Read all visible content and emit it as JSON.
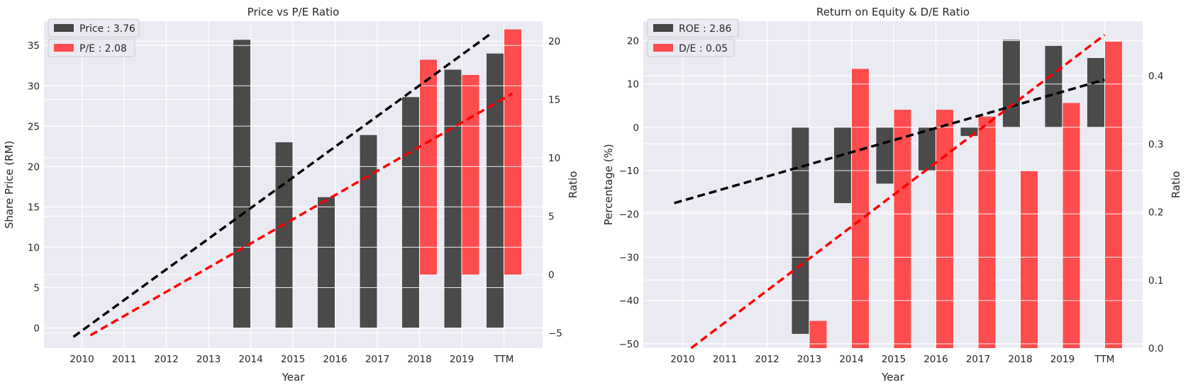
{
  "chart_data": [
    {
      "type": "bar",
      "title": "Price vs P/E Ratio",
      "xlabel": "Year",
      "ylabel": "Share Price (RM)",
      "y2label": "Ratio",
      "categories": [
        "2010",
        "2011",
        "2012",
        "2013",
        "2014",
        "2015",
        "2016",
        "2017",
        "2018",
        "2019",
        "TTM"
      ],
      "ylim": [
        -2.5,
        38
      ],
      "yticks": [
        0,
        5,
        10,
        15,
        20,
        25,
        30,
        35
      ],
      "y2lim": [
        -6.3,
        21.7
      ],
      "y2ticks": [
        -5,
        0,
        5,
        10,
        15,
        20
      ],
      "grid": true,
      "legend_position": "top-left",
      "series": [
        {
          "name": "Price : 3.76",
          "axis": "left",
          "color": "#333333",
          "values": [
            null,
            null,
            null,
            null,
            35.7,
            23.0,
            16.2,
            23.9,
            28.6,
            32.0,
            34.0
          ]
        },
        {
          "name": "P/E : 2.08",
          "axis": "right",
          "color": "#ff3b3b",
          "values": [
            null,
            null,
            null,
            null,
            null,
            null,
            null,
            null,
            18.4,
            17.1,
            21.0
          ]
        }
      ],
      "trendlines": [
        {
          "color": "#000000",
          "axis": "left",
          "x": [
            -0.2,
            9.7
          ],
          "y": [
            -1.1,
            36.5
          ]
        },
        {
          "color": "#ff0000",
          "axis": "right",
          "x": [
            0.2,
            10.2
          ],
          "y": [
            -5.2,
            15.5
          ]
        }
      ]
    },
    {
      "type": "bar",
      "title": "Return on Equity & D/E Ratio",
      "xlabel": "Year",
      "ylabel": "Percentage (%)",
      "y2label": "Ratio",
      "categories": [
        "2010",
        "2011",
        "2012",
        "2013",
        "2014",
        "2015",
        "2016",
        "2017",
        "2018",
        "2019",
        "TTM"
      ],
      "ylim": [
        -51,
        24.5
      ],
      "yticks": [
        -50,
        -40,
        -30,
        -20,
        -10,
        0,
        10,
        20
      ],
      "y2lim": [
        0,
        0.48
      ],
      "y2ticks": [
        0.0,
        0.1,
        0.2,
        0.3,
        0.4
      ],
      "grid": true,
      "legend_position": "top-left",
      "series": [
        {
          "name": "ROE : 2.86",
          "axis": "left",
          "color": "#333333",
          "values": [
            null,
            null,
            null,
            -47.7,
            -17.5,
            -13.0,
            -10.0,
            -2.0,
            20.2,
            18.8,
            16.0
          ]
        },
        {
          "name": "D/E : 0.05",
          "axis": "right",
          "color": "#ff3b3b",
          "values": [
            null,
            null,
            null,
            0.04,
            0.41,
            0.35,
            0.35,
            0.34,
            0.26,
            0.36,
            0.45
          ]
        }
      ],
      "trendlines": [
        {
          "color": "#000000",
          "axis": "left",
          "x": [
            -0.2,
            10.0
          ],
          "y": [
            -17.5,
            11.0
          ]
        },
        {
          "color": "#ff0000",
          "axis": "right",
          "x": [
            0.2,
            10.0
          ],
          "y": [
            0.0,
            0.46
          ]
        }
      ]
    }
  ]
}
